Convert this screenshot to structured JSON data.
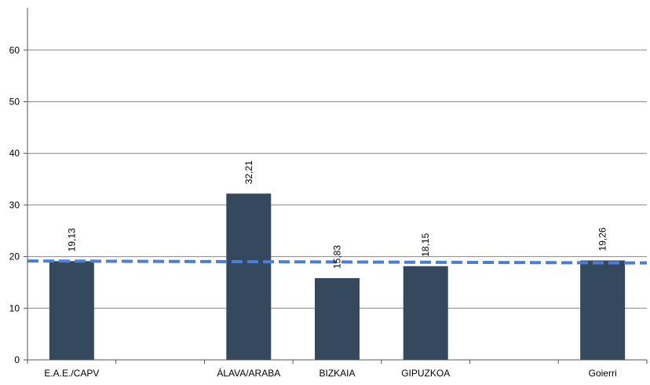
{
  "chart_data": {
    "type": "bar",
    "title": "",
    "xlabel": "",
    "ylabel": "",
    "ylim": [
      0,
      70
    ],
    "yticks": [
      0,
      10,
      20,
      30,
      40,
      50,
      60
    ],
    "grid": true,
    "categories": [
      "E.A.E./CAPV",
      "",
      "ÁLAVA/ARABA",
      "BIZKAIA",
      "GIPUZKOA",
      "",
      "Goierri"
    ],
    "values": [
      19.13,
      null,
      32.21,
      15.83,
      18.15,
      null,
      19.26
    ],
    "data_labels": [
      "19,13",
      "",
      "32,21",
      "15,83",
      "18,15",
      "",
      "19,26"
    ],
    "reference_line": {
      "value": 19.0,
      "style": "dashed"
    },
    "colors": {
      "bar": "#34495e",
      "reference_line": "#4a7fd6",
      "grid": "#888888",
      "axis": "#555555"
    }
  }
}
